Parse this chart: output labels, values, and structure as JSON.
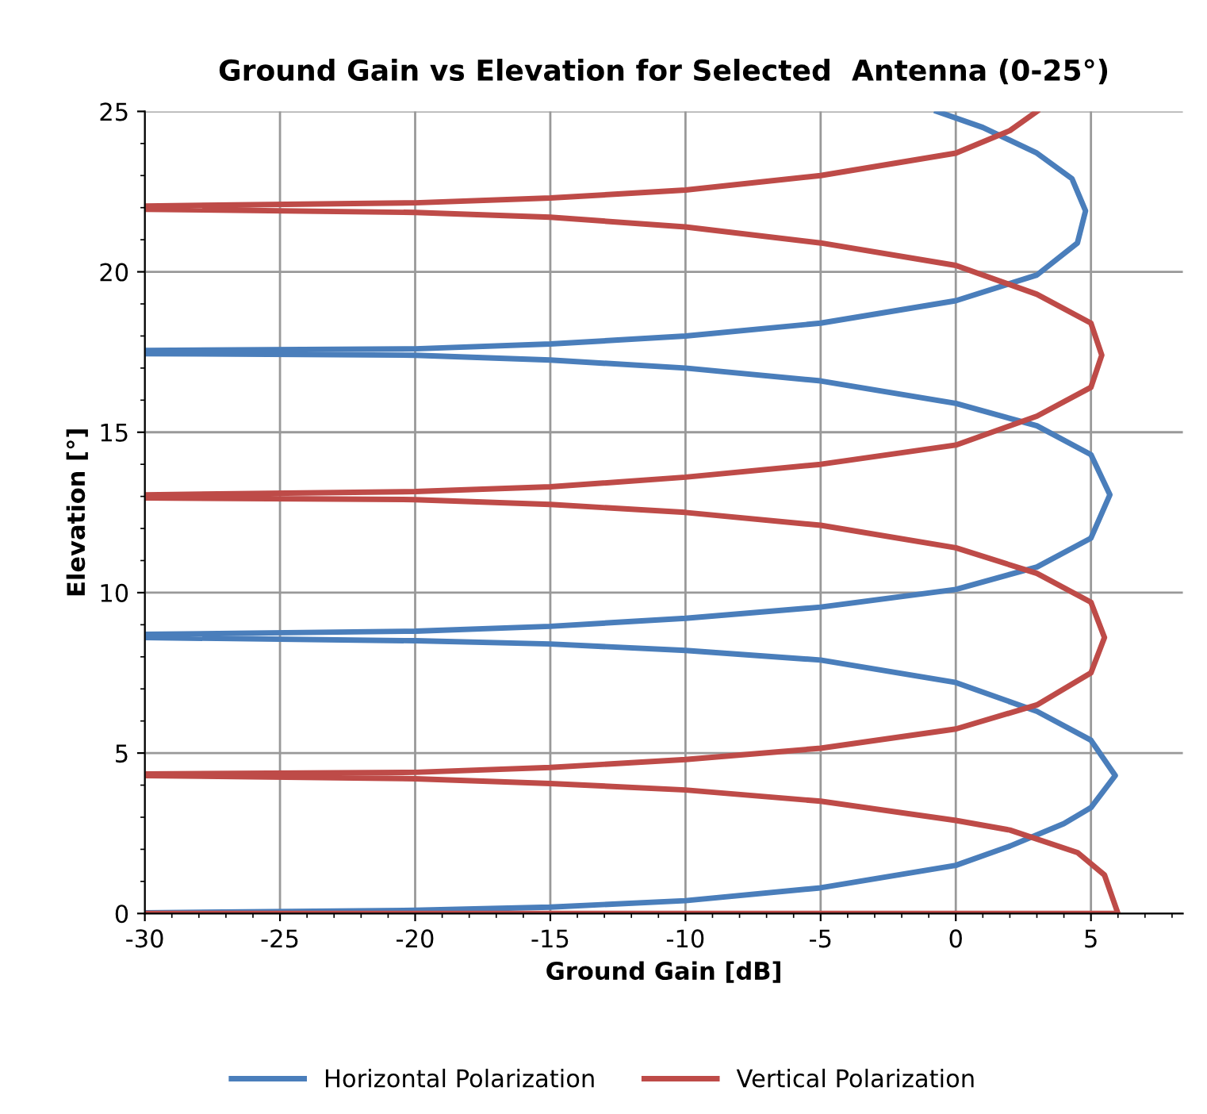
{
  "chart_data": {
    "type": "line",
    "title": "Ground Gain vs Elevation for Selected  Antenna (0-25°)",
    "xlabel": "Ground Gain [dB]",
    "ylabel": "Elevation [°]",
    "xlim": [
      -30,
      8.4
    ],
    "xticks": [
      -30,
      -25,
      -20,
      -15,
      -10,
      -5,
      0,
      5
    ],
    "ylim": [
      0,
      25
    ],
    "yticks": [
      0,
      5,
      10,
      15,
      20,
      25
    ],
    "grid": true,
    "legend": "bottom",
    "marker": "none",
    "line_style": "solid",
    "series": [
      {
        "name": "Horizontal Polarization",
        "color": "#4a7ebb",
        "x": [
          -30,
          -20,
          -15,
          -10,
          -5,
          0,
          2,
          4,
          5,
          5.9,
          5,
          3,
          0,
          -5,
          -10,
          -15,
          -20,
          -30,
          -30,
          -20,
          -15,
          -10,
          -5,
          0,
          3,
          5,
          5.7,
          5,
          3,
          0,
          -5,
          -10,
          -15,
          -20,
          -30,
          -30,
          -20,
          -15,
          -10,
          -5,
          0,
          3,
          4.5,
          4.8,
          4.3,
          3,
          1,
          -0.7
        ],
        "values": [
          0.02,
          0.1,
          0.2,
          0.4,
          0.8,
          1.5,
          2.1,
          2.8,
          3.3,
          4.3,
          5.4,
          6.3,
          7.2,
          7.9,
          8.2,
          8.4,
          8.5,
          8.6,
          8.7,
          8.8,
          8.95,
          9.2,
          9.55,
          10.1,
          10.8,
          11.7,
          13.05,
          14.3,
          15.2,
          15.9,
          16.6,
          17.0,
          17.25,
          17.4,
          17.45,
          17.55,
          17.6,
          17.75,
          18.0,
          18.4,
          19.1,
          19.9,
          20.9,
          21.9,
          22.9,
          23.7,
          24.5,
          25
        ]
      },
      {
        "name": "Vertical Polarization",
        "color": "#be4b48",
        "x": [
          -30,
          6,
          5.5,
          4.5,
          2,
          0,
          -5,
          -10,
          -15,
          -20,
          -30,
          -30,
          -20,
          -15,
          -10,
          -5,
          0,
          3,
          5,
          5.5,
          5,
          3,
          0,
          -5,
          -10,
          -15,
          -20,
          -30,
          -30,
          -20,
          -15,
          -10,
          -5,
          0,
          3,
          5,
          5.4,
          5,
          3,
          0,
          -5,
          -10,
          -15,
          -20,
          -30,
          -30,
          -20,
          -15,
          -10,
          -5,
          0,
          2,
          3
        ],
        "values": [
          0,
          0,
          1.2,
          1.9,
          2.6,
          2.9,
          3.5,
          3.85,
          4.05,
          4.2,
          4.3,
          4.35,
          4.4,
          4.55,
          4.8,
          5.15,
          5.75,
          6.5,
          7.5,
          8.6,
          9.7,
          10.6,
          11.4,
          12.1,
          12.5,
          12.75,
          12.9,
          12.95,
          13.05,
          13.15,
          13.3,
          13.6,
          14.0,
          14.6,
          15.5,
          16.4,
          17.4,
          18.4,
          19.3,
          20.2,
          20.9,
          21.4,
          21.7,
          21.85,
          21.95,
          22.05,
          22.15,
          22.3,
          22.55,
          23.0,
          23.7,
          24.4,
          25
        ]
      }
    ]
  }
}
